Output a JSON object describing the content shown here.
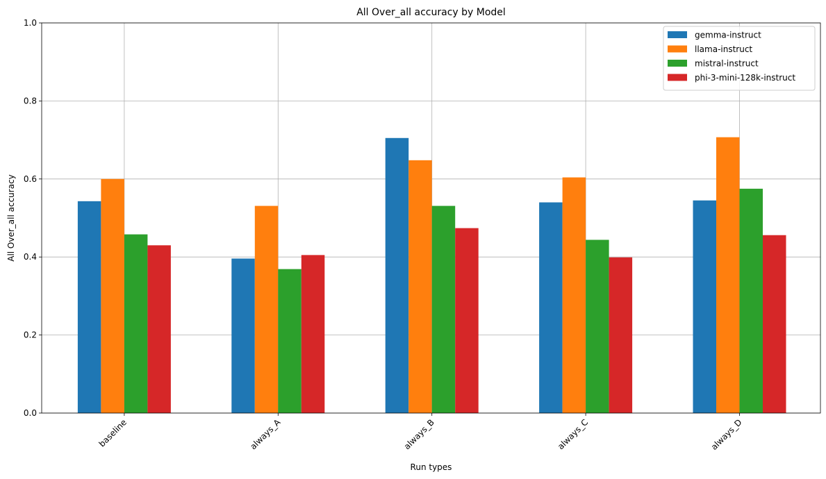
{
  "chart_data": {
    "type": "bar",
    "title": "All Over_all accuracy by Model",
    "xlabel": "Run types",
    "ylabel": "All Over_all accuracy",
    "categories": [
      "baseline",
      "always_A",
      "always_B",
      "always_C",
      "always_D"
    ],
    "ylim": [
      0,
      1.0
    ],
    "yticks": [
      "0.0",
      "0.2",
      "0.4",
      "0.6",
      "0.8",
      "1.0"
    ],
    "grid": true,
    "legend_position": "top-right",
    "series": [
      {
        "name": "gemma-instruct",
        "color": "#1f77b4",
        "values": [
          0.543,
          0.396,
          0.705,
          0.54,
          0.545
        ]
      },
      {
        "name": "llama-instruct",
        "color": "#ff7f0e",
        "values": [
          0.6,
          0.531,
          0.648,
          0.604,
          0.707
        ]
      },
      {
        "name": "mistral-instruct",
        "color": "#2ca02c",
        "values": [
          0.458,
          0.369,
          0.531,
          0.444,
          0.575
        ]
      },
      {
        "name": "phi-3-mini-128k-instruct",
        "color": "#d62728",
        "values": [
          0.43,
          0.405,
          0.474,
          0.399,
          0.456
        ]
      }
    ]
  }
}
